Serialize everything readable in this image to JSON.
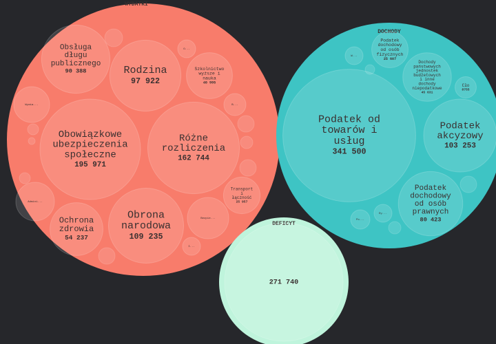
{
  "chart_data": {
    "type": "pack",
    "series": [
      {
        "name": "WYDATKI",
        "color": "#f87c6b",
        "labels": [
          "Obsługa długu publicznego",
          "Rodzina",
          "Szkolnictwo wyższe i nauka",
          "Obowiązkowe ubezpieczenia społeczne",
          "Różne rozliczenia",
          "Obrona narodowa",
          "Ochrona zdrowia",
          "Transport i łączność"
        ],
        "values": [
          90388,
          97922,
          40995,
          195971,
          162744,
          109235,
          54237,
          25957
        ],
        "value_labels": [
          "90 388",
          "97 922",
          "40 995",
          "195 971",
          "162 744",
          "109 235",
          "54 237",
          "25 957"
        ],
        "others": [
          "Wymia...",
          "Admini...",
          "Bezpie...",
          "O...",
          "B...",
          "I..."
        ]
      },
      {
        "name": "DOCHODY",
        "color": "#3ec4c4",
        "labels": [
          "Podatek od towarów i usług",
          "Podatek akcyzowy",
          "Podatek dochodowy od osób prawnych",
          "Podatek dochodowy od osób fizycznych",
          "Dochody państwowych jednostek budżetowych i inne dochody niepodatkowe",
          "Cło"
        ],
        "values": [
          341500,
          103253,
          80423,
          25607,
          45631,
          8755
        ],
        "value_labels": [
          "341 500",
          "103 253",
          "80 423",
          "25 607",
          "45 631",
          "8755"
        ],
        "others": [
          "Po...",
          "Dy...",
          "W..."
        ]
      },
      {
        "name": "DEFICYT",
        "color": "#bff4dc",
        "values": [
          271740
        ],
        "value_labels": [
          "271 740"
        ]
      }
    ]
  }
}
